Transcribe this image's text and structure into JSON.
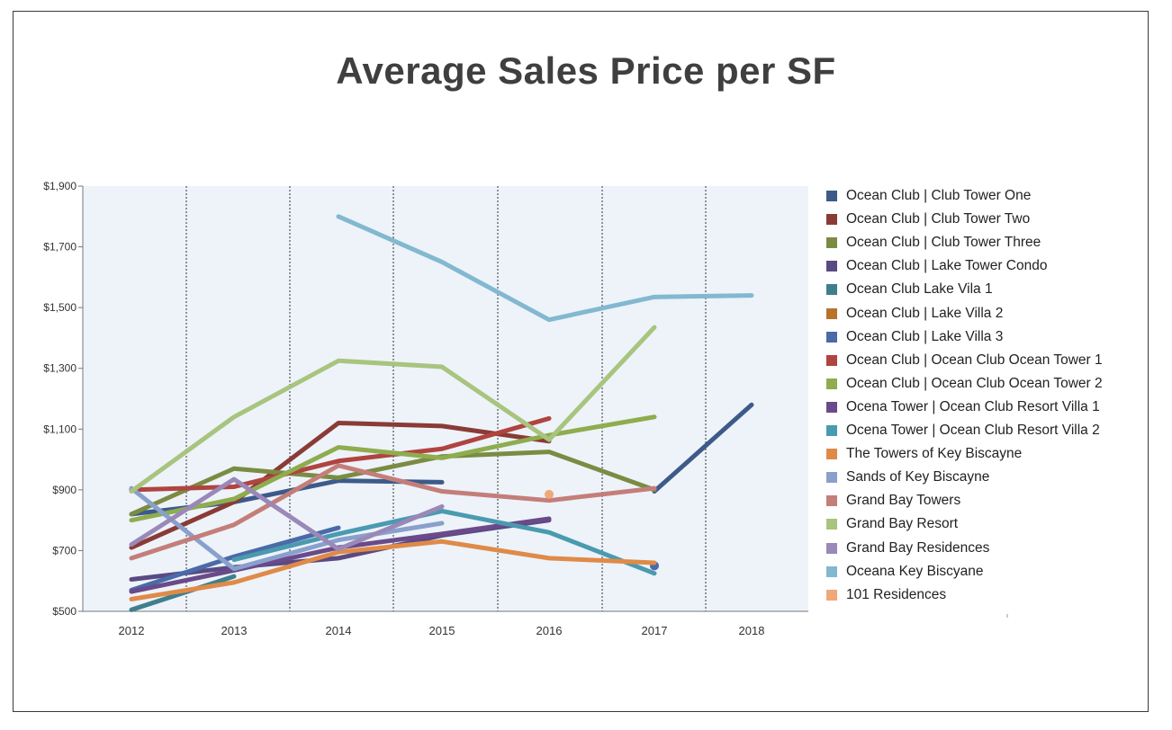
{
  "chart_data": {
    "type": "line",
    "title": "Average Sales Price per SF",
    "x": [
      "2012",
      "2013",
      "2014",
      "2015",
      "2016",
      "2017",
      "2018"
    ],
    "y_ticks": [
      "$500",
      "$700",
      "$900",
      "$1,100",
      "$1,300",
      "$1,500",
      "$1,700",
      "$1,900"
    ],
    "ylim": [
      500,
      1900
    ],
    "legend_position": "right",
    "grid": "vertical dotted separators between years",
    "series": [
      {
        "name": "Ocean Club | Club Tower One",
        "color": "#3d5a8a",
        "values": [
          820,
          860,
          930,
          925,
          null,
          895,
          1180
        ]
      },
      {
        "name": "Ocean Club | Club Tower Two",
        "color": "#8a3b36",
        "values": [
          710,
          860,
          1120,
          1110,
          1060,
          null,
          null
        ]
      },
      {
        "name": "Ocean Club | Club Tower Three",
        "color": "#7a8c42",
        "values": [
          820,
          970,
          940,
          1010,
          1025,
          900,
          null
        ]
      },
      {
        "name": "Ocean Club | Lake Tower Condo",
        "color": "#5a4a82",
        "values": [
          605,
          645,
          675,
          750,
          800,
          null,
          null
        ]
      },
      {
        "name": "Ocean Club Lake Vila 1",
        "color": "#3f7f8c",
        "values": [
          505,
          615,
          null,
          null,
          null,
          null,
          null
        ]
      },
      {
        "name": "Ocean Club | Lake Villa 2",
        "color": "#b8722a",
        "values": [
          null,
          null,
          null,
          null,
          null,
          null,
          null
        ]
      },
      {
        "name": "Ocean Club | Lake Villa 3",
        "color": "#4a6aa8",
        "values": [
          570,
          680,
          775,
          null,
          null,
          650,
          null
        ]
      },
      {
        "name": "Ocean Club | Ocean Club Ocean Tower 1",
        "color": "#b04440",
        "values": [
          900,
          910,
          995,
          1035,
          1135,
          null,
          null
        ]
      },
      {
        "name": "Ocean Club | Ocean Club Ocean Tower 2",
        "color": "#8fac4e",
        "values": [
          800,
          870,
          1040,
          1005,
          1080,
          1140,
          null
        ]
      },
      {
        "name": "Ocena Tower | Ocean Club Resort Villa 1",
        "color": "#6a4a8a",
        "values": [
          565,
          635,
          710,
          755,
          805,
          null,
          null
        ]
      },
      {
        "name": "Ocena Tower | Ocean Club Resort Villa 2",
        "color": "#4a9ab0",
        "values": [
          null,
          670,
          755,
          830,
          760,
          625,
          null
        ]
      },
      {
        "name": "The Towers of Key Biscayne",
        "color": "#e08a48",
        "values": [
          540,
          595,
          695,
          730,
          675,
          660,
          null
        ]
      },
      {
        "name": "Sands of Key Biscayne",
        "color": "#8aa0cc",
        "values": [
          905,
          640,
          735,
          790,
          null,
          null,
          null
        ]
      },
      {
        "name": "Grand Bay Towers",
        "color": "#c47e7a",
        "values": [
          675,
          785,
          980,
          895,
          865,
          905,
          null
        ]
      },
      {
        "name": "Grand Bay Resort",
        "color": "#a8c47e",
        "values": [
          895,
          1140,
          1325,
          1305,
          1065,
          1435,
          null
        ]
      },
      {
        "name": "Grand Bay Residences",
        "color": "#9a88b8",
        "values": [
          720,
          935,
          705,
          845,
          null,
          null,
          null
        ]
      },
      {
        "name": "Oceana Key Biscyane",
        "color": "#82b8d0",
        "values": [
          null,
          null,
          1800,
          1650,
          1460,
          1535,
          1540
        ]
      },
      {
        "name": "101 Residences",
        "color": "#f0a878",
        "values": [
          null,
          null,
          null,
          null,
          885,
          null,
          null
        ]
      }
    ]
  }
}
